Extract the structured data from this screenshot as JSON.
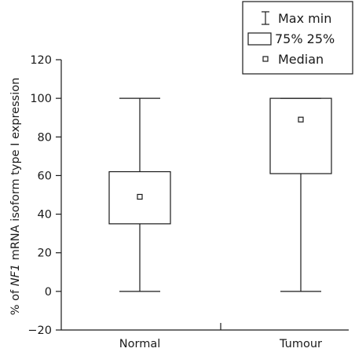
{
  "chart_data": {
    "type": "box",
    "title": "",
    "ylabel_parts": [
      {
        "text": "% of ",
        "italic": false
      },
      {
        "text": "NF1",
        "italic": true
      },
      {
        "text": " mRNA isoform type I expression",
        "italic": false
      }
    ],
    "xlabel": "",
    "ylim": [
      -20,
      120
    ],
    "yticks": [
      -20,
      0,
      20,
      40,
      60,
      80,
      100,
      120
    ],
    "ytick_labels": [
      "−20",
      "0",
      "20",
      "40",
      "60",
      "80",
      "100",
      "120"
    ],
    "grid": false,
    "legend_position": "top-right",
    "legend": [
      {
        "symbol": "whisker",
        "label": "Max min"
      },
      {
        "symbol": "box",
        "label": "75% 25%"
      },
      {
        "symbol": "median",
        "label": "Median"
      }
    ],
    "categories": [
      "Normal",
      "Tumour"
    ],
    "boxes": [
      {
        "category": "Normal",
        "min": 0,
        "q1": 35,
        "median": 49,
        "q3": 62,
        "max": 100
      },
      {
        "category": "Tumour",
        "min": 0,
        "q1": 61,
        "median": 89,
        "q3": 100,
        "max": 100
      }
    ]
  }
}
